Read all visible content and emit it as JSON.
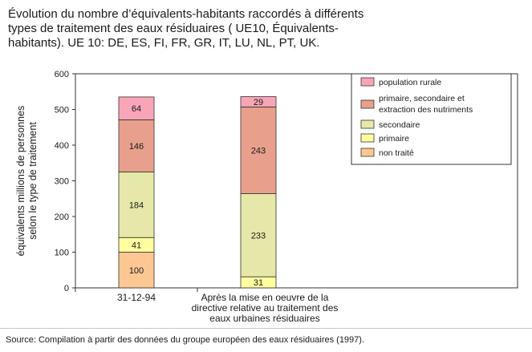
{
  "title_lines": [
    "Évolution du nombre d’équivalents-habitants raccordés à différents",
    "types de traitement des eaux résiduaires ( UE10, Équivalents-",
    "habitants). UE 10: DE, ES, FI, FR, GR, IT, LU, NL, PT, UK."
  ],
  "source": "Source: Compilation à partir des données du groupe européen des eaux résiduaires (1997).",
  "chart_data": {
    "type": "bar",
    "stacked": true,
    "ylabel_lines": [
      "équivalents  millions  de  personnes",
      "selon  le  type  de  traitement"
    ],
    "ylim": [
      0,
      600
    ],
    "yticks": [
      "0",
      "100",
      "200",
      "300",
      "400",
      "500",
      "600"
    ],
    "categories": [
      [
        "31-12-94"
      ],
      [
        "Après la mise en oeuvre de la",
        "directive relative au traitement des",
        "eaux urbaines résiduaires"
      ]
    ],
    "series": [
      {
        "name": "non traité",
        "color": "#FDC793",
        "values": [
          100,
          0
        ]
      },
      {
        "name": "primaire",
        "color": "#FFFFA0",
        "values": [
          41,
          31
        ]
      },
      {
        "name": "secondaire",
        "color": "#E5E8A8",
        "values": [
          184,
          233
        ]
      },
      {
        "name": "primaire, secondaire et extraction des nutriments",
        "color": "#E8A08C",
        "values": [
          146,
          243
        ]
      },
      {
        "name": "population rurale",
        "color": "#F9A5B8",
        "values": [
          64,
          29
        ]
      }
    ],
    "data_labels": [
      [
        "100",
        "41",
        "184",
        "146",
        "64"
      ],
      [
        "",
        "31",
        "233",
        "243",
        "29"
      ]
    ],
    "legend": {
      "placement": "top-right",
      "entries": [
        {
          "lines": [
            "population rurale"
          ],
          "color": "#F9A5B8"
        },
        {
          "lines": [
            "primaire, secondaire et",
            "extraction des nutriments"
          ],
          "color": "#E8A08C"
        },
        {
          "lines": [
            "secondaire"
          ],
          "color": "#E5E8A8"
        },
        {
          "lines": [
            "primaire"
          ],
          "color": "#FFFFA0"
        },
        {
          "lines": [
            "non traité"
          ],
          "color": "#FDC793"
        }
      ]
    },
    "grid": false
  }
}
